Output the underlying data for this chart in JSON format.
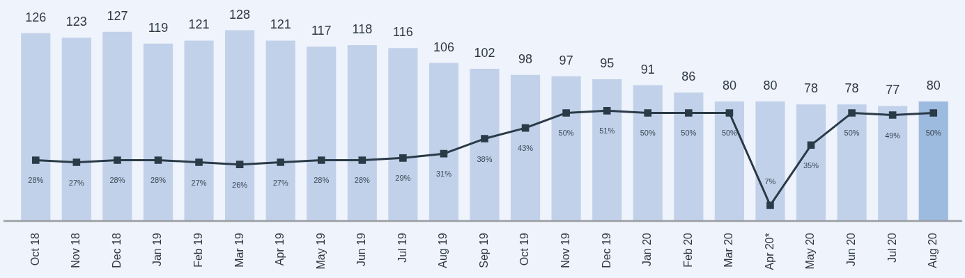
{
  "chart_data": {
    "type": "bar",
    "categories": [
      "Oct 18",
      "Nov 18",
      "Dec 18",
      "Jan 19",
      "Feb 19",
      "Mar 19",
      "Apr 19",
      "May 19",
      "Jun 19",
      "Jul 19",
      "Aug 19",
      "Sep 19",
      "Oct 19",
      "Nov 19",
      "Dec 19",
      "Jan 20",
      "Feb 20",
      "Mar 20",
      "Apr 20*",
      "May 20",
      "Jun 20",
      "Jul 20",
      "Aug 20"
    ],
    "series": [
      {
        "colors": [
          "#c2d1ea",
          "#c2d1ea",
          "#c2d1ea",
          "#c2d1ea",
          "#c2d1ea",
          "#c2d1ea",
          "#c2d1ea",
          "#c2d1ea",
          "#c2d1ea",
          "#c2d1ea",
          "#c2d1ea",
          "#c2d1ea",
          "#c2d1ea",
          "#c2d1ea",
          "#c2d1ea",
          "#c2d1ea",
          "#c2d1ea",
          "#c2d1ea",
          "#c2d1ea",
          "#c2d1ea",
          "#c2d1ea",
          "#c2d1ea",
          "#9dbadf"
        ],
        "values": [
          126,
          123,
          127,
          119,
          121,
          128,
          121,
          117,
          118,
          116,
          106,
          102,
          98,
          97,
          95,
          91,
          86,
          80,
          80,
          78,
          78,
          77,
          80
        ],
        "value_labels": [
          "126",
          "123",
          "127",
          "119",
          "121",
          "128",
          "121",
          "117",
          "118",
          "116",
          "106",
          "102",
          "98",
          "97",
          "95",
          "91",
          "86",
          "80",
          "80",
          "78",
          "78",
          "77",
          "80"
        ]
      },
      {
        "type": "line",
        "axis": "y2",
        "color": "#2a3a47",
        "values": [
          28,
          27,
          28,
          28,
          27,
          26,
          27,
          28,
          28,
          29,
          31,
          38,
          43,
          50,
          51,
          50,
          50,
          50,
          7,
          35,
          50,
          49,
          50
        ],
        "value_labels": [
          "28%",
          "27%",
          "28%",
          "28%",
          "27%",
          "26%",
          "27%",
          "28%",
          "28%",
          "29%",
          "31%",
          "38%",
          "43%",
          "50%",
          "51%",
          "50%",
          "50%",
          "50%",
          "7%",
          "35%",
          "50%",
          "49%",
          "50%"
        ]
      }
    ],
    "marker": "square",
    "line_style": "solid",
    "tick_labels": "x"
  }
}
